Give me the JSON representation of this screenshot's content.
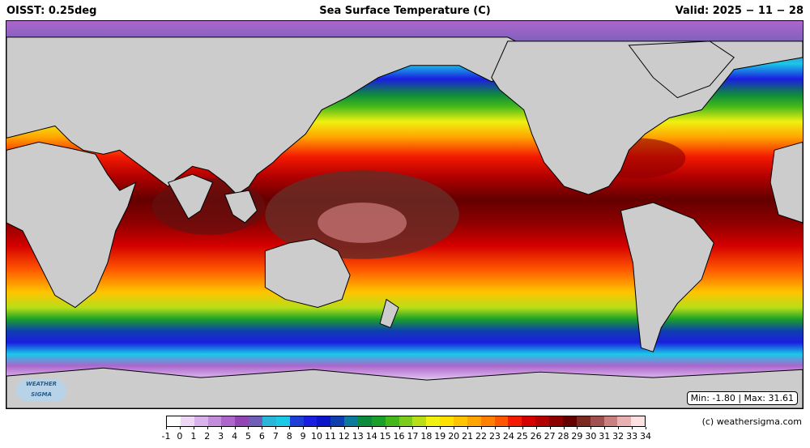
{
  "header": {
    "left": "OISST: 0.25deg",
    "center": "Sea Surface Temperature (C)",
    "right": "Valid: 2025 − 11 − 28"
  },
  "map": {
    "min_max": "Min: -1.80 | Max: 31.61",
    "logo_lines": [
      "WEATHER",
      "SIGMA"
    ],
    "land_color": "#cccccc",
    "ice_color": "#ffffff"
  },
  "colorbar": {
    "labels": [
      "-1",
      "0",
      "1",
      "2",
      "3",
      "4",
      "5",
      "6",
      "7",
      "8",
      "9",
      "10",
      "11",
      "12",
      "13",
      "14",
      "15",
      "16",
      "17",
      "18",
      "19",
      "20",
      "21",
      "22",
      "23",
      "24",
      "25",
      "26",
      "27",
      "28",
      "29",
      "30",
      "31",
      "32",
      "33",
      "34"
    ],
    "colors": [
      "#ffffff",
      "#eed8f5",
      "#d8b2ea",
      "#c38ddc",
      "#ac66cc",
      "#9245b5",
      "#6f5fb8",
      "#2ab6d9",
      "#1ac8e8",
      "#1f3ed6",
      "#1a1ee0",
      "#0a14c8",
      "#0f3fae",
      "#0d7a9b",
      "#0e8a3c",
      "#1aa02a",
      "#42b81a",
      "#7ccc1c",
      "#b8de18",
      "#f0f011",
      "#ffe000",
      "#ffc400",
      "#ffa400",
      "#ff8000",
      "#ff5400",
      "#f41a00",
      "#d40000",
      "#b40000",
      "#8c0000",
      "#640000",
      "#7a2a20",
      "#a05050",
      "#c88080",
      "#e8b0b0",
      "#fde0e0"
    ]
  },
  "copyright": "(c) weathersigma.com"
}
